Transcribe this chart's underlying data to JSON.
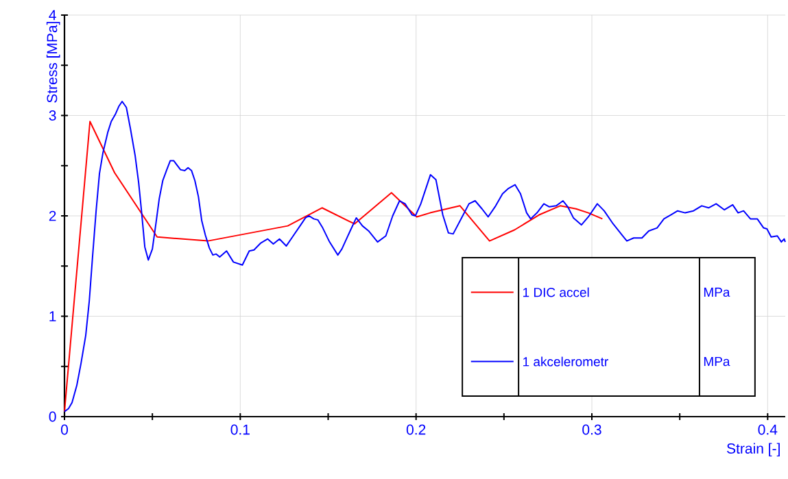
{
  "chart_data": {
    "type": "line",
    "xlabel": "Strain [-]",
    "ylabel": "Stress [MPa]",
    "xlim": [
      0,
      0.41
    ],
    "ylim": [
      0,
      4
    ],
    "xticks": [
      0,
      {
        "value": 0.05,
        "label": null
      },
      0.1,
      {
        "value": 0.15,
        "label": null
      },
      0.2,
      {
        "value": 0.25,
        "label": null
      },
      0.3,
      {
        "value": 0.35,
        "label": null
      },
      0.4
    ],
    "yticks": [
      0,
      {
        "value": 0.5,
        "label": null
      },
      1,
      {
        "value": 1.5,
        "label": null
      },
      2,
      {
        "value": 2.5,
        "label": null
      },
      3,
      {
        "value": 3.5,
        "label": null
      },
      4
    ],
    "grid": true,
    "legend": "bottom right",
    "marker": "none",
    "line_style": "solid",
    "annotations": [
      "MPa",
      "MPa"
    ],
    "series": [
      {
        "name": "1 DIC accel",
        "color": "#ff0000",
        "x": [
          0,
          0.0145,
          0.0285,
          0.0527,
          0.0816,
          0.127,
          0.1465,
          0.165,
          0.186,
          0.2004,
          0.208,
          0.225,
          0.2418,
          0.256,
          0.27,
          0.282,
          0.291,
          0.298,
          0.306
        ],
        "values": [
          0.05,
          2.94,
          2.43,
          1.79,
          1.75,
          1.9,
          2.08,
          1.92,
          2.23,
          1.99,
          2.03,
          2.1,
          1.75,
          1.86,
          2.01,
          2.1,
          2.07,
          2.03,
          1.97
        ]
      },
      {
        "name": "1 akcelerometr",
        "color": "#0000ff",
        "x": [
          0,
          0.0023,
          0.0043,
          0.007,
          0.0094,
          0.0121,
          0.0141,
          0.016,
          0.018,
          0.0199,
          0.0219,
          0.0246,
          0.0266,
          0.0289,
          0.0309,
          0.0328,
          0.0352,
          0.0375,
          0.0402,
          0.0422,
          0.0438,
          0.0457,
          0.0477,
          0.05,
          0.052,
          0.0539,
          0.0559,
          0.0582,
          0.0602,
          0.0621,
          0.066,
          0.0684,
          0.0703,
          0.0723,
          0.0742,
          0.0762,
          0.0781,
          0.0801,
          0.0824,
          0.0844,
          0.0863,
          0.0883,
          0.0922,
          0.0961,
          0.1012,
          0.1051,
          0.1078,
          0.1117,
          0.1156,
          0.1188,
          0.1223,
          0.1262,
          0.1301,
          0.134,
          0.1371,
          0.1391,
          0.1418,
          0.1441,
          0.1469,
          0.1508,
          0.1555,
          0.1578,
          0.1625,
          0.166,
          0.1695,
          0.173,
          0.1781,
          0.1828,
          0.1867,
          0.1906,
          0.1938,
          0.1977,
          0.1996,
          0.2027,
          0.2082,
          0.2113,
          0.2152,
          0.2184,
          0.2211,
          0.2262,
          0.2301,
          0.2336,
          0.2375,
          0.241,
          0.2453,
          0.2492,
          0.2523,
          0.2563,
          0.2594,
          0.2629,
          0.2652,
          0.2688,
          0.2727,
          0.2758,
          0.2797,
          0.2836,
          0.2863,
          0.2895,
          0.2941,
          0.298,
          0.3031,
          0.307,
          0.3121,
          0.3176,
          0.3199,
          0.3238,
          0.3285,
          0.3324,
          0.3371,
          0.341,
          0.3449,
          0.3488,
          0.3531,
          0.3578,
          0.3625,
          0.3664,
          0.3707,
          0.3754,
          0.3801,
          0.3832,
          0.3863,
          0.3902,
          0.3941,
          0.3977,
          0.3996,
          0.402,
          0.4055,
          0.4078,
          0.4094,
          0.41
        ],
        "values": [
          0.05,
          0.08,
          0.14,
          0.31,
          0.53,
          0.81,
          1.15,
          1.6,
          2.05,
          2.42,
          2.63,
          2.83,
          2.94,
          3.01,
          3.09,
          3.14,
          3.08,
          2.87,
          2.6,
          2.33,
          2.05,
          1.69,
          1.56,
          1.67,
          1.92,
          2.17,
          2.35,
          2.46,
          2.55,
          2.55,
          2.46,
          2.45,
          2.48,
          2.45,
          2.35,
          2.19,
          1.95,
          1.81,
          1.68,
          1.61,
          1.62,
          1.59,
          1.65,
          1.54,
          1.51,
          1.65,
          1.66,
          1.73,
          1.77,
          1.72,
          1.77,
          1.7,
          1.8,
          1.9,
          1.98,
          2.0,
          1.97,
          1.96,
          1.88,
          1.74,
          1.61,
          1.67,
          1.85,
          1.98,
          1.9,
          1.85,
          1.74,
          1.8,
          2.0,
          2.15,
          2.12,
          2.01,
          2.0,
          2.12,
          2.41,
          2.36,
          2.01,
          1.83,
          1.82,
          1.99,
          2.12,
          2.15,
          2.07,
          1.99,
          2.1,
          2.22,
          2.27,
          2.31,
          2.22,
          2.03,
          1.97,
          2.03,
          2.12,
          2.09,
          2.1,
          2.15,
          2.09,
          1.98,
          1.91,
          1.99,
          2.12,
          2.05,
          1.92,
          1.8,
          1.75,
          1.78,
          1.78,
          1.85,
          1.88,
          1.97,
          2.01,
          2.05,
          2.03,
          2.05,
          2.1,
          2.08,
          2.12,
          2.06,
          2.11,
          2.03,
          2.05,
          1.97,
          1.97,
          1.88,
          1.87,
          1.79,
          1.8,
          1.74,
          1.77,
          1.74
        ]
      }
    ]
  }
}
